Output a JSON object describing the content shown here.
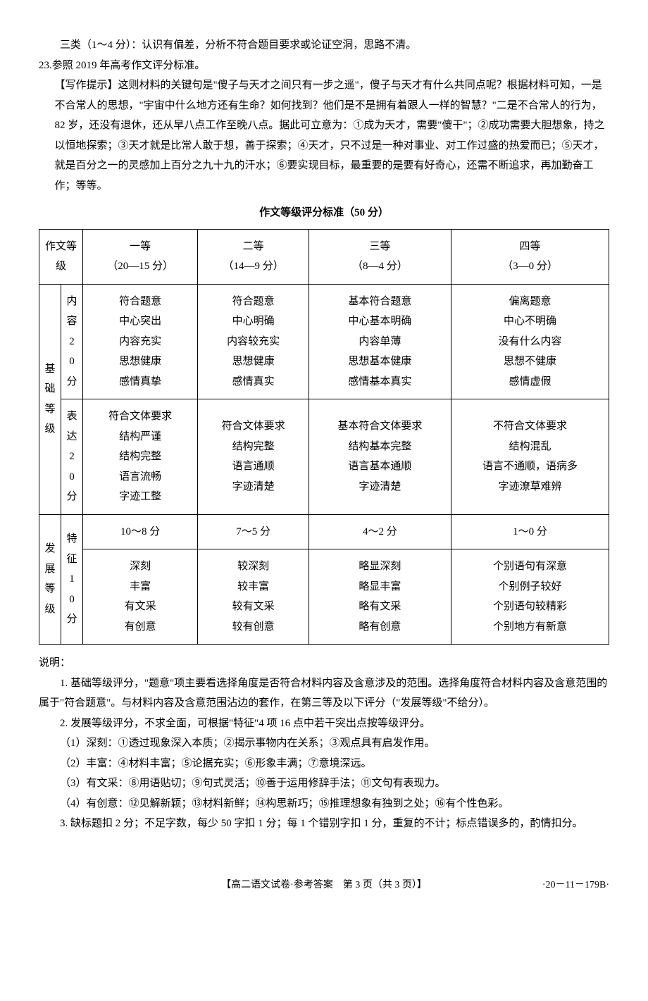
{
  "intro": {
    "line1_prefix": "三类（1～4 分）：",
    "line1_body": "认识有偏差，分析不符合题目要求或论证空洞，思路不清。",
    "q23_num": "23.",
    "q23_body": "参照 2019 年高考作文评分标准。",
    "tip_label": "【写作提示】",
    "tip_body": "这则材料的关键句是\"傻子与天才之间只有一步之遥\"，傻子与天才有什么共同点呢？根据材料可知，一是不合常人的思想，\"宇宙中什么地方还有生命？如何找到？他们是不是拥有着跟人一样的智慧？\"二是不合常人的行为，82 岁，还没有退休，还从早八点工作至晚八点。据此可立意为：①成为天才，需要\"傻干\"；②成功需要大胆想象，持之以恒地探索；③天才就是比常人敢于想，善于探索；④天才，只不过是一种对事业、对工作过盛的热爱而已；⑤天才，就是百分之一的灵感加上百分之九十九的汗水；⑥要实现目标，最重要的是要有好奇心，还需不断追求，再加勤奋工作；等等。"
  },
  "rubric_title": "作文等级评分标准（50 分）",
  "table": {
    "header": {
      "level_label": "作文等级",
      "col1a": "一等",
      "col1b": "（20—15 分）",
      "col2a": "二等",
      "col2b": "（14—9 分）",
      "col3a": "三等",
      "col3b": "（8—4 分）",
      "col4a": "四等",
      "col4b": "（3—0 分）"
    },
    "base_group": "基础等级",
    "content_group": "内容20分",
    "content": {
      "c1": "符合题意\n中心突出\n内容充实\n思想健康\n感情真挚",
      "c2": "符合题意\n中心明确\n内容较充实\n思想健康\n感情真实",
      "c3": "基本符合题意\n中心基本明确\n内容单薄\n思想基本健康\n感情基本真实",
      "c4": "偏离题意\n中心不明确\n没有什么内容\n思想不健康\n感情虚假"
    },
    "express_group": "表达20分",
    "express": {
      "c1": "符合文体要求\n结构严谨\n结构完整\n语言流畅\n字迹工整",
      "c2": "符合文体要求\n结构完整\n语言通顺\n字迹清楚",
      "c3": "基本符合文体要求\n结构基本完整\n语言基本通顺\n字迹清楚",
      "c4": "不符合文体要求\n结构混乱\n语言不通顺，语病多\n字迹潦草难辨"
    },
    "dev_group": "发展等级",
    "feature_group": "特征10分",
    "dev_scores": {
      "c1": "10～8 分",
      "c2": "7～5 分",
      "c3": "4～2 分",
      "c4": "1～0 分"
    },
    "dev": {
      "c1": "深刻\n丰富\n有文采\n有创意",
      "c2": "较深刻\n较丰富\n较有文采\n较有创意",
      "c3": "略显深刻\n略显丰富\n略有文采\n略有创意",
      "c4": "个别语句有深意\n个别例子较好\n个别语句较精彩\n个别地方有新意"
    }
  },
  "notes": {
    "label": "说明：",
    "n1": "1. 基础等级评分，\"题意\"项主要看选择角度是否符合材料内容及含意涉及的范围。选择角度符合材料内容及含意范围的属于\"符合题意\"。与材料内容及含意范围沾边的套作，在第三等及以下评分（\"发展等级\"不给分）。",
    "n2": "2. 发展等级评分，不求全面，可根据\"特征\"4 项 16 点中若干突出点按等级评分。",
    "n2_1": "（1）深刻：①透过现象深入本质；②揭示事物内在关系；③观点具有启发作用。",
    "n2_2": "（2）丰富：④材料丰富；⑤论据充实；⑥形象丰满；⑦意境深远。",
    "n2_3": "（3）有文采：⑧用语贴切；⑨句式灵活；⑩善于运用修辞手法；⑪文句有表现力。",
    "n2_4": "（4）有创意：⑫见解新颖；⑬材料新鲜；⑭构思新巧；⑮推理想象有独到之处；⑯有个性色彩。",
    "n3": "3. 缺标题扣 2 分；不足字数，每少 50 字扣 1 分；每 1 个错别字扣 1 分，重复的不计；标点错误多的，酌情扣分。"
  },
  "footer": {
    "center": "【高二语文试卷·参考答案　第 3 页（共 3 页）】",
    "right": "·20－11－179B·"
  }
}
